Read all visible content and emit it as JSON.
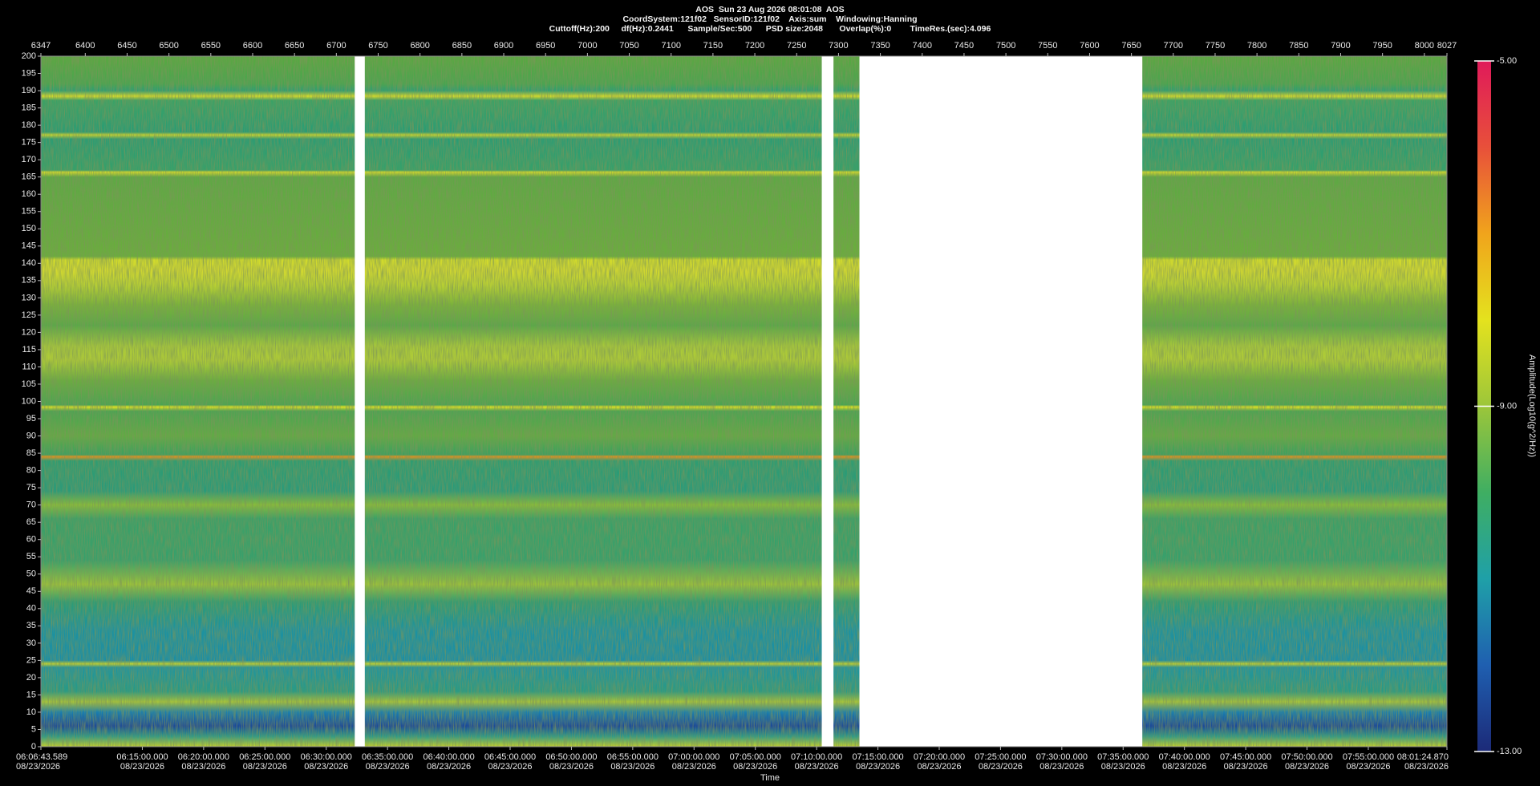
{
  "chart_data": {
    "type": "spectrogram",
    "title": "AOS  Sun 23 Aug 2026 08:01:08  AOS",
    "subtitle": "CoordSystem:121f02   SensorID:121f02    Axis:sum    Windowing:Hanning",
    "settings_line": "Cuttoff(Hz):200     df(Hz):0.2441      Sample/Sec:500      PSD size:2048       Overlap(%):0        TimeRes.(sec):4.096",
    "x_label": "Time",
    "xlim": [
      6347,
      8027
    ],
    "xticks": [
      6347,
      6400,
      6450,
      6500,
      6550,
      6600,
      6650,
      6700,
      6750,
      6800,
      6850,
      6900,
      6950,
      7000,
      7050,
      7100,
      7150,
      7200,
      7250,
      7300,
      7350,
      7400,
      7450,
      7500,
      7550,
      7600,
      7650,
      7700,
      7750,
      7800,
      7850,
      7900,
      7950,
      8000,
      8027
    ],
    "x2lim": [
      "06:06:43.589",
      "08:01:24.870"
    ],
    "x2ticks": [
      {
        "time": "06:06:43.589",
        "date": "08/23/2026"
      },
      {
        "time": "06:15:00.000",
        "date": "08/23/2026"
      },
      {
        "time": "06:20:00.000",
        "date": "08/23/2026"
      },
      {
        "time": "06:25:00.000",
        "date": "08/23/2026"
      },
      {
        "time": "06:30:00.000",
        "date": "08/23/2026"
      },
      {
        "time": "06:35:00.000",
        "date": "08/23/2026"
      },
      {
        "time": "06:40:00.000",
        "date": "08/23/2026"
      },
      {
        "time": "06:45:00.000",
        "date": "08/23/2026"
      },
      {
        "time": "06:50:00.000",
        "date": "08/23/2026"
      },
      {
        "time": "06:55:00.000",
        "date": "08/23/2026"
      },
      {
        "time": "07:00:00.000",
        "date": "08/23/2026"
      },
      {
        "time": "07:05:00.000",
        "date": "08/23/2026"
      },
      {
        "time": "07:10:00.000",
        "date": "08/23/2026"
      },
      {
        "time": "07:15:00.000",
        "date": "08/23/2026"
      },
      {
        "time": "07:20:00.000",
        "date": "08/23/2026"
      },
      {
        "time": "07:25:00.000",
        "date": "08/23/2026"
      },
      {
        "time": "07:30:00.000",
        "date": "08/23/2026"
      },
      {
        "time": "07:35:00.000",
        "date": "08/23/2026"
      },
      {
        "time": "07:40:00.000",
        "date": "08/23/2026"
      },
      {
        "time": "07:45:00.000",
        "date": "08/23/2026"
      },
      {
        "time": "07:50:00.000",
        "date": "08/23/2026"
      },
      {
        "time": "07:55:00.000",
        "date": "08/23/2026"
      },
      {
        "time": "08:01:24.870",
        "date": "08/23/2026"
      }
    ],
    "ylim": [
      0,
      200
    ],
    "yticks": [
      0,
      5,
      10,
      15,
      20,
      25,
      30,
      35,
      40,
      45,
      50,
      55,
      60,
      65,
      70,
      75,
      80,
      85,
      90,
      95,
      100,
      105,
      110,
      115,
      120,
      125,
      130,
      135,
      140,
      145,
      150,
      155,
      160,
      165,
      170,
      175,
      180,
      185,
      190,
      195,
      200
    ],
    "gaps": [
      [
        6722,
        6734
      ],
      [
        7280,
        7294
      ],
      [
        7325,
        7663
      ]
    ],
    "colorbar": {
      "label": "Amplitude(Log10(g^2/Hz))",
      "lim": [
        -13,
        -5
      ],
      "ticks": [
        {
          "value": -13,
          "label": "-13.00"
        },
        {
          "value": -9,
          "label": "-9.00"
        },
        {
          "value": -5,
          "label": "-5.00"
        }
      ],
      "colormap": [
        "#1c2a78",
        "#1f5fb0",
        "#1fa0a8",
        "#3fae62",
        "#9cc63a",
        "#e4e21e",
        "#f0a41c",
        "#e8503a",
        "#e01a5a"
      ]
    }
  }
}
